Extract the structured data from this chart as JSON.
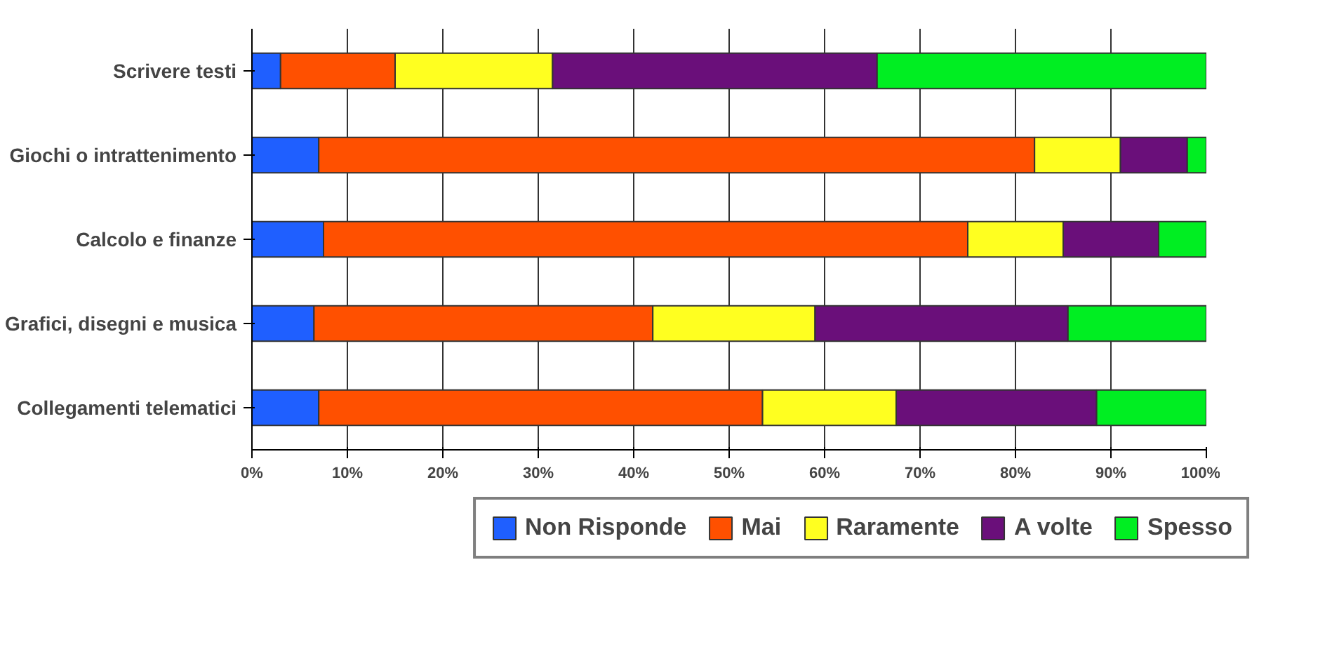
{
  "chart_data": {
    "type": "bar",
    "orientation": "horizontal",
    "stacked": true,
    "categories": [
      "Scrivere testi",
      "Giochi o intrattenimento",
      "Calcolo e finanze",
      "Grafici, disegni e musica",
      "Collegamenti telematici"
    ],
    "series": [
      {
        "name": "Non Risponde",
        "color": "#1f5fff",
        "values": [
          3,
          7,
          7.5,
          6.5,
          7
        ]
      },
      {
        "name": "Mai",
        "color": "#ff5000",
        "values": [
          12,
          75,
          67.5,
          35.5,
          46.5
        ]
      },
      {
        "name": "Raramente",
        "color": "#ffff20",
        "values": [
          16.5,
          9,
          10,
          17,
          14
        ]
      },
      {
        "name": "A volte",
        "color": "#6a0f7a",
        "values": [
          34,
          7,
          10,
          26.5,
          21
        ]
      },
      {
        "name": "Spesso",
        "color": "#00ee22",
        "values": [
          34.5,
          2,
          5,
          14.5,
          11.5
        ]
      }
    ],
    "xlim": [
      0,
      100
    ],
    "xticks": [
      {
        "value": 0,
        "label": "0%"
      },
      {
        "value": 10,
        "label": "10%"
      },
      {
        "value": 20,
        "label": "20%"
      },
      {
        "value": 30,
        "label": "30%"
      },
      {
        "value": 40,
        "label": "40%"
      },
      {
        "value": 50,
        "label": "50%"
      },
      {
        "value": 60,
        "label": "60%"
      },
      {
        "value": 70,
        "label": "70%"
      },
      {
        "value": 80,
        "label": "80%"
      },
      {
        "value": 90,
        "label": "90%"
      },
      {
        "value": 100,
        "label": "100%"
      }
    ],
    "grid": "x",
    "legend": "bottom"
  }
}
